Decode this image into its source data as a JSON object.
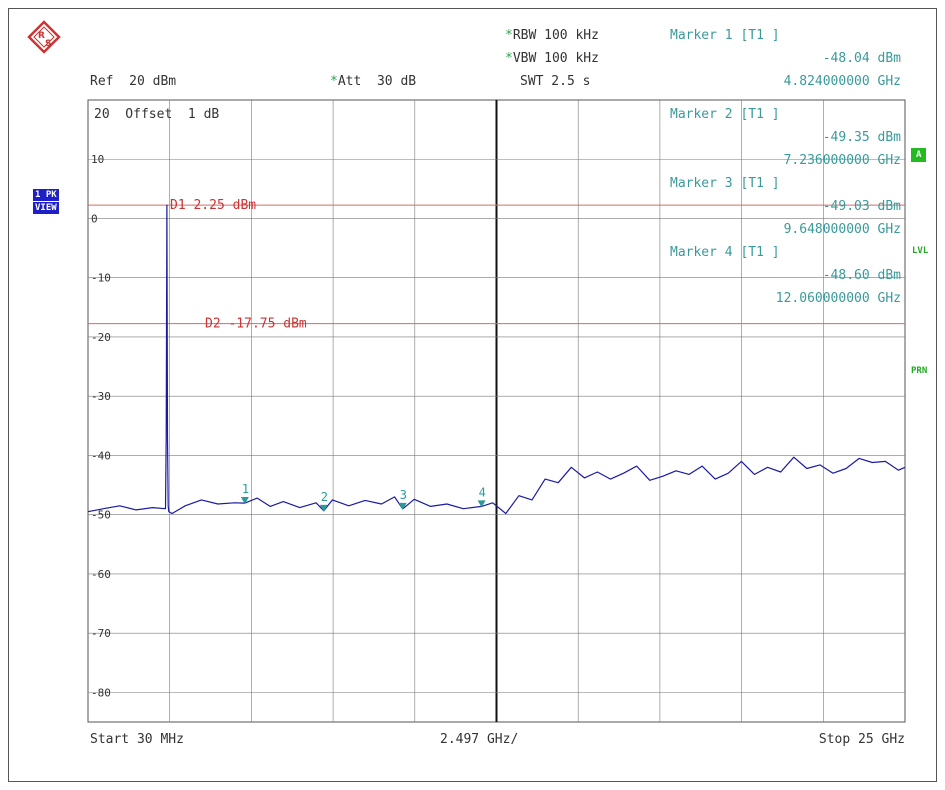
{
  "logo": "R&S",
  "header": {
    "ref": "Ref  20 dBm",
    "att": "Att  30 dB",
    "rbw": "RBW 100 kHz",
    "vbw": "VBW 100 kHz",
    "swt": "SWT 2.5 s",
    "marker1_title": "Marker 1 [T1 ]",
    "marker1_level": "-48.04 dBm",
    "marker1_freq": "4.824000000 GHz"
  },
  "overlay": {
    "offset": "20  Offset  1 dB",
    "markers": [
      {
        "title": "Marker 2 [T1 ]",
        "level": "-49.35 dBm",
        "freq": "7.236000000 GHz"
      },
      {
        "title": "Marker 3 [T1 ]",
        "level": "-49.03 dBm",
        "freq": "9.648000000 GHz"
      },
      {
        "title": "Marker 4 [T1 ]",
        "level": "-48.60 dBm",
        "freq": "12.060000000 GHz"
      }
    ]
  },
  "side": {
    "pk": "1 PK",
    "view": "VIEW",
    "a": "A",
    "lvl": "LVL",
    "prn": "PRN"
  },
  "footer": {
    "start": "Start 30 MHz",
    "span": "2.497 GHz/",
    "stop": "Stop 25 GHz"
  },
  "colors": {
    "trace": "#1a1aa8",
    "display_line": "#d96a6a",
    "marker": "#2a9a9a",
    "grid": "#7a7a7a"
  },
  "chart_data": {
    "type": "line",
    "xlim": [
      0.03,
      25
    ],
    "ylim": [
      -85,
      20
    ],
    "y_ticks": [
      20,
      10,
      0,
      -10,
      -20,
      -30,
      -40,
      -50,
      -60,
      -70,
      -80
    ],
    "y_tick_labels": [
      "20",
      "10",
      "0",
      "-10",
      "-20",
      "-30",
      "-40",
      "-50",
      "-60",
      "-70",
      "-80"
    ],
    "display_lines": [
      {
        "label": "D1 2.25 dBm",
        "value": 2.25
      },
      {
        "label": "D2 -17.75 dBm",
        "value": -17.75
      }
    ],
    "markers": [
      {
        "label": "1",
        "x": 4.824,
        "y": -48.04
      },
      {
        "label": "2",
        "x": 7.236,
        "y": -49.35
      },
      {
        "label": "3",
        "x": 9.648,
        "y": -49.03
      },
      {
        "label": "4",
        "x": 12.06,
        "y": -48.6
      }
    ],
    "series": [
      {
        "x": [
          0.03,
          0.5,
          1.0,
          1.5,
          2.0,
          2.4,
          2.42,
          2.44,
          2.46,
          2.48,
          2.5,
          2.6,
          3.0,
          3.5,
          4.0,
          4.5,
          4.824,
          5.2,
          5.6,
          6.0,
          6.5,
          7.0,
          7.236,
          7.5,
          8.0,
          8.5,
          9.0,
          9.4,
          9.648,
          10.0,
          10.5,
          11.0,
          11.5,
          12.06,
          12.4,
          12.8,
          13.2,
          13.6,
          14.0,
          14.4,
          14.8,
          15.2,
          15.6,
          16.0,
          16.4,
          16.8,
          17.2,
          17.6,
          18.0,
          18.4,
          18.8,
          19.2,
          19.6,
          20.0,
          20.4,
          20.8,
          21.2,
          21.6,
          22.0,
          22.4,
          22.8,
          23.2,
          23.6,
          24.0,
          24.4,
          24.8,
          25.0
        ],
        "y": [
          -49.5,
          -49.0,
          -48.5,
          -49.2,
          -48.8,
          -49.0,
          -37.0,
          2.25,
          -37.0,
          -48.5,
          -49.5,
          -49.8,
          -48.5,
          -47.5,
          -48.2,
          -48.0,
          -48.04,
          -47.2,
          -48.6,
          -47.8,
          -48.8,
          -48.0,
          -49.35,
          -47.5,
          -48.5,
          -47.6,
          -48.2,
          -47.0,
          -49.03,
          -47.4,
          -48.6,
          -48.2,
          -49.0,
          -48.6,
          -48.0,
          -49.8,
          -46.8,
          -47.5,
          -44.0,
          -44.6,
          -42.0,
          -43.8,
          -42.8,
          -44.0,
          -43.0,
          -41.8,
          -44.2,
          -43.5,
          -42.6,
          -43.2,
          -41.8,
          -44.0,
          -43.0,
          -41.0,
          -43.2,
          -42.0,
          -42.8,
          -40.3,
          -42.2,
          -41.6,
          -43.0,
          -42.2,
          -40.5,
          -41.2,
          -41.0,
          -42.5,
          -42.0
        ]
      }
    ]
  }
}
